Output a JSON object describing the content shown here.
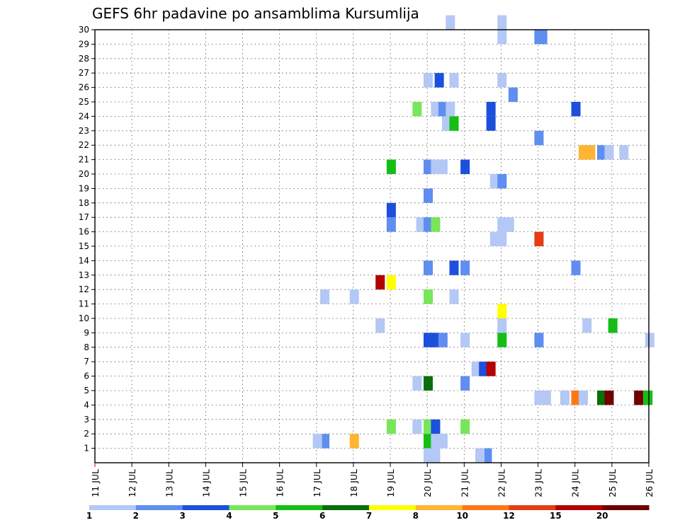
{
  "chart_data": {
    "type": "heatmap",
    "title": "GEFS 6hr padavine po ansamblima Kursumlija",
    "xlabel": "",
    "ylabel": "",
    "x_ticks": [
      "11 JUL",
      "12 JUL",
      "13 JUL",
      "14 JUL",
      "15 JUL",
      "16 JUL",
      "17 JUL",
      "18 JUL",
      "19 JUL",
      "20 JUL",
      "21 JUL",
      "22 JUL",
      "23 JUL",
      "24 JUL",
      "25 JUL",
      "26 JUL"
    ],
    "xlim": [
      "11 JUL 00Z",
      "26 JUL 00Z"
    ],
    "y_ticks": [
      1,
      2,
      3,
      4,
      5,
      6,
      7,
      8,
      9,
      10,
      11,
      12,
      13,
      14,
      15,
      16,
      17,
      18,
      19,
      20,
      21,
      22,
      23,
      24,
      25,
      26,
      27,
      28,
      29,
      30
    ],
    "ylim": [
      0,
      30
    ],
    "grid": true,
    "color_scale": {
      "labels": [
        "1",
        "2",
        "3",
        "4",
        "5",
        "6",
        "7",
        "8",
        "10",
        "12",
        "15",
        "20"
      ],
      "colors": [
        "#b4c8f5",
        "#5f8ef0",
        "#1c50dc",
        "#78e65a",
        "#14be14",
        "#0a6e0a",
        "#ffff00",
        "#ffb432",
        "#ff7814",
        "#e63c14",
        "#b40000",
        "#6e0000"
      ]
    },
    "values_note": "cells: [day_index_from_11_JUL (6h steps, .25 each), member, color_class_index]",
    "cells": [
      [
        9.5,
        30,
        0
      ],
      [
        10.9,
        30,
        0
      ],
      [
        10.9,
        29,
        0
      ],
      [
        11.9,
        29,
        1
      ],
      [
        12.0,
        29,
        1
      ],
      [
        8.9,
        26,
        0
      ],
      [
        9.2,
        26,
        2
      ],
      [
        9.6,
        26,
        0
      ],
      [
        10.9,
        26,
        0
      ],
      [
        11.2,
        25,
        1
      ],
      [
        8.6,
        24,
        3
      ],
      [
        9.1,
        24,
        0
      ],
      [
        9.3,
        24,
        1
      ],
      [
        9.5,
        24,
        0
      ],
      [
        10.6,
        24,
        2
      ],
      [
        12.9,
        24,
        2
      ],
      [
        9.4,
        23,
        0
      ],
      [
        9.6,
        23,
        4
      ],
      [
        10.6,
        23,
        2
      ],
      [
        11.9,
        22,
        1
      ],
      [
        13.1,
        21,
        7
      ],
      [
        13.3,
        21,
        7
      ],
      [
        13.6,
        21,
        1
      ],
      [
        13.8,
        21,
        0
      ],
      [
        14.2,
        21,
        0
      ],
      [
        7.9,
        20,
        4
      ],
      [
        8.9,
        20,
        1
      ],
      [
        9.1,
        20,
        0
      ],
      [
        9.3,
        20,
        0
      ],
      [
        9.9,
        20,
        2
      ],
      [
        10.7,
        19,
        0
      ],
      [
        10.9,
        19,
        1
      ],
      [
        8.9,
        18,
        1
      ],
      [
        7.9,
        17,
        2
      ],
      [
        7.9,
        16,
        1
      ],
      [
        8.7,
        16,
        0
      ],
      [
        8.9,
        16,
        1
      ],
      [
        9.1,
        16,
        3
      ],
      [
        10.9,
        16,
        0
      ],
      [
        11.1,
        16,
        0
      ],
      [
        10.7,
        15,
        0
      ],
      [
        10.9,
        15,
        0
      ],
      [
        11.9,
        15,
        9
      ],
      [
        8.9,
        13,
        1
      ],
      [
        9.6,
        13,
        2
      ],
      [
        9.9,
        13,
        1
      ],
      [
        12.9,
        13,
        1
      ],
      [
        7.6,
        12,
        10
      ],
      [
        7.9,
        12,
        6
      ],
      [
        6.1,
        11,
        0
      ],
      [
        6.9,
        11,
        0
      ],
      [
        8.9,
        11,
        3
      ],
      [
        9.6,
        11,
        0
      ],
      [
        10.9,
        10,
        6
      ],
      [
        7.6,
        9,
        0
      ],
      [
        10.9,
        9,
        0
      ],
      [
        13.2,
        9,
        0
      ],
      [
        13.9,
        9,
        4
      ],
      [
        8.9,
        8,
        2
      ],
      [
        9.1,
        8,
        2
      ],
      [
        9.3,
        8,
        1
      ],
      [
        9.9,
        8,
        0
      ],
      [
        10.9,
        8,
        4
      ],
      [
        11.9,
        8,
        1
      ],
      [
        14.9,
        8,
        0
      ],
      [
        10.2,
        6,
        0
      ],
      [
        10.4,
        6,
        2
      ],
      [
        10.6,
        6,
        10
      ],
      [
        8.6,
        5,
        0
      ],
      [
        8.9,
        5,
        5
      ],
      [
        9.9,
        5,
        1
      ],
      [
        11.9,
        4,
        0
      ],
      [
        12.1,
        4,
        0
      ],
      [
        12.6,
        4,
        0
      ],
      [
        12.9,
        4,
        8
      ],
      [
        13.1,
        4,
        0
      ],
      [
        13.6,
        4,
        5
      ],
      [
        13.8,
        4,
        11
      ],
      [
        14.6,
        4,
        11
      ],
      [
        14.85,
        4,
        4
      ],
      [
        7.9,
        2,
        3
      ],
      [
        8.6,
        2,
        0
      ],
      [
        8.9,
        2,
        3
      ],
      [
        9.1,
        2,
        2
      ],
      [
        9.9,
        2,
        3
      ],
      [
        6.1,
        1,
        1
      ],
      [
        5.9,
        1,
        0
      ],
      [
        6.9,
        1,
        7
      ],
      [
        8.9,
        1,
        4
      ],
      [
        9.1,
        1,
        0
      ],
      [
        9.3,
        1,
        0
      ],
      [
        8.9,
        0,
        0
      ],
      [
        9.1,
        0,
        0
      ],
      [
        10.5,
        0,
        1
      ],
      [
        10.3,
        0,
        0
      ]
    ]
  }
}
